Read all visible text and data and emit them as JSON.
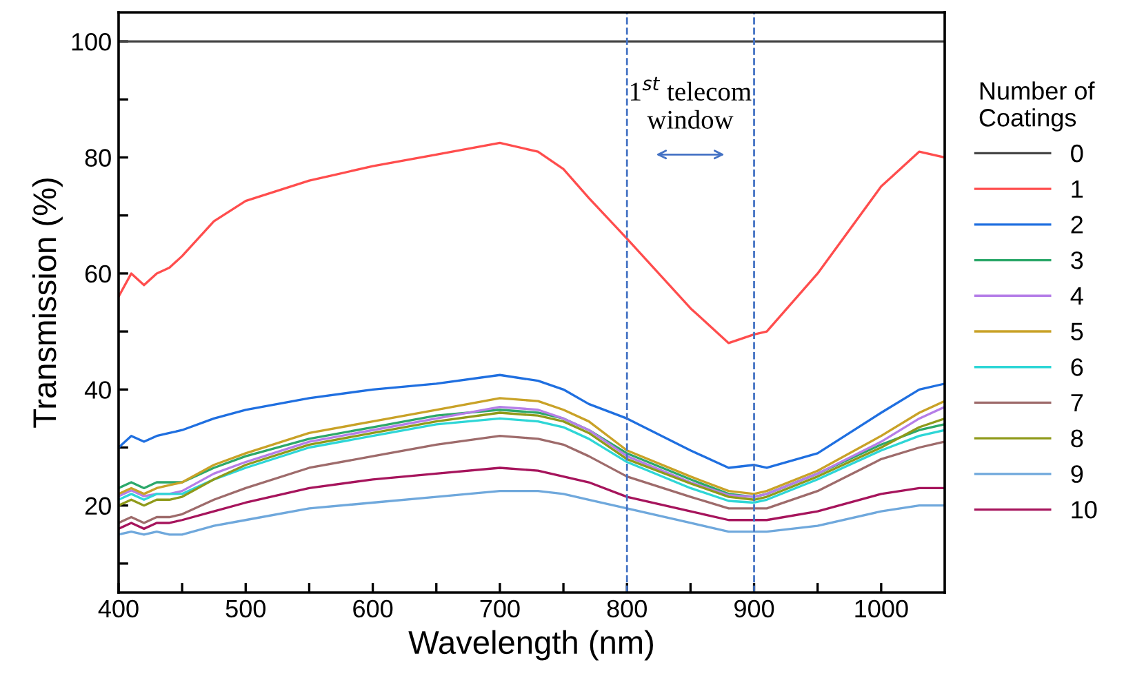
{
  "chart_data": {
    "type": "line",
    "xlabel": "Wavelength (nm)",
    "ylabel": "Transmission (%)",
    "legend_title": "Number of Coatings",
    "x": [
      400,
      410,
      420,
      430,
      440,
      450,
      475,
      500,
      550,
      600,
      650,
      700,
      730,
      750,
      770,
      800,
      850,
      880,
      900,
      910,
      950,
      1000,
      1030,
      1050
    ],
    "xlim": [
      400,
      1050
    ],
    "ylim": [
      5,
      105
    ],
    "xticks": [
      400,
      {
        "value": 450,
        "label": null
      },
      500,
      {
        "value": 550,
        "label": null
      },
      600,
      {
        "value": 650,
        "label": null
      },
      700,
      {
        "value": 750,
        "label": null
      },
      800,
      {
        "value": 850,
        "label": null
      },
      900,
      {
        "value": 950,
        "label": null
      },
      1000
    ],
    "yticks": [
      {
        "value": 10,
        "label": null
      },
      20,
      {
        "value": 30,
        "label": null
      },
      40,
      {
        "value": 50,
        "label": null
      },
      60,
      {
        "value": 70,
        "label": null
      },
      80,
      {
        "value": 90,
        "label": null
      },
      100
    ],
    "grid": false,
    "legend": "right",
    "line_style": "solid",
    "marker": "none",
    "series": [
      {
        "name": "0",
        "color": "#444444",
        "values": [
          100,
          100,
          100,
          100,
          100,
          100,
          100,
          100,
          100,
          100,
          100,
          100,
          100,
          100,
          100,
          100,
          100,
          100,
          100,
          100,
          100,
          100,
          100,
          100
        ]
      },
      {
        "name": "1",
        "color": "#ff4d4d",
        "values": [
          56,
          60,
          58,
          60,
          61,
          63,
          69,
          72.5,
          76,
          78.5,
          80.5,
          82.5,
          81,
          78,
          73,
          66,
          54,
          48,
          49.5,
          50,
          60,
          75,
          81,
          80
        ]
      },
      {
        "name": "2",
        "color": "#1f6fe0",
        "values": [
          30,
          32,
          31,
          32,
          32.5,
          33,
          35,
          36.5,
          38.5,
          40,
          41,
          42.5,
          41.5,
          40,
          37.5,
          35,
          29.5,
          26.5,
          27,
          26.5,
          29,
          36,
          40,
          41
        ]
      },
      {
        "name": "3",
        "color": "#2ca86a",
        "values": [
          23,
          24,
          23,
          24,
          24,
          24,
          26.5,
          28.5,
          31.5,
          33.5,
          35.5,
          36.5,
          36,
          35,
          33,
          29,
          24.5,
          22,
          21.5,
          22,
          25.5,
          30.5,
          33,
          34
        ]
      },
      {
        "name": "4",
        "color": "#b57ee8",
        "values": [
          21.6,
          22.6,
          21.6,
          22,
          22,
          22.5,
          25.5,
          27.5,
          31,
          33,
          35,
          37,
          36.5,
          35,
          33,
          28.5,
          24,
          21.8,
          21.5,
          22,
          25.5,
          31,
          35,
          37
        ]
      },
      {
        "name": "5",
        "color": "#c9a227",
        "values": [
          22,
          23,
          22,
          23,
          23.5,
          24,
          27,
          29,
          32.5,
          34.5,
          36.5,
          38.5,
          38,
          36.5,
          34.5,
          29.5,
          25,
          22.5,
          22,
          22.5,
          26,
          32,
          36,
          38
        ]
      },
      {
        "name": "6",
        "color": "#2ed6d6",
        "values": [
          21,
          22,
          21,
          22,
          22,
          22,
          24.5,
          26.5,
          30,
          32,
          34,
          35,
          34.5,
          33.5,
          31.5,
          27.5,
          23,
          20.8,
          20.5,
          21,
          24.5,
          29.5,
          32,
          33
        ]
      },
      {
        "name": "7",
        "color": "#9e6b6b",
        "values": [
          17,
          18,
          17,
          18,
          18,
          18.5,
          21,
          23,
          26.5,
          28.5,
          30.5,
          32,
          31.5,
          30.5,
          28.5,
          25,
          21.5,
          19.5,
          19.5,
          19.5,
          22.5,
          28,
          30,
          31
        ]
      },
      {
        "name": "8",
        "color": "#8f9a1a",
        "values": [
          20,
          21,
          20,
          21,
          21,
          21.5,
          24.5,
          27,
          30.5,
          32.5,
          34.5,
          36,
          35.5,
          34.5,
          32.5,
          28,
          23.8,
          21.5,
          21,
          21.5,
          25,
          30,
          33.5,
          35
        ]
      },
      {
        "name": "9",
        "color": "#6fa8dc",
        "values": [
          15,
          15.5,
          15,
          15.5,
          15,
          15,
          16.5,
          17.5,
          19.5,
          20.5,
          21.5,
          22.5,
          22.5,
          22,
          21,
          19.5,
          17,
          15.5,
          15.5,
          15.5,
          16.5,
          19,
          20,
          20
        ]
      },
      {
        "name": "10",
        "color": "#a6145c",
        "values": [
          16,
          17,
          16,
          17,
          17,
          17.5,
          19,
          20.5,
          23,
          24.5,
          25.5,
          26.5,
          26,
          25,
          24,
          21.5,
          19,
          17.5,
          17.5,
          17.5,
          19,
          22,
          23,
          23
        ]
      }
    ],
    "ref_lines": [
      {
        "axis": "x",
        "value": 800,
        "color": "#4472c4",
        "line_style": "dashed"
      },
      {
        "axis": "x",
        "value": 900,
        "color": "#4472c4",
        "line_style": "dashed"
      }
    ],
    "annotations": [
      "1$^{st}$ telecom\nwindow"
    ]
  }
}
